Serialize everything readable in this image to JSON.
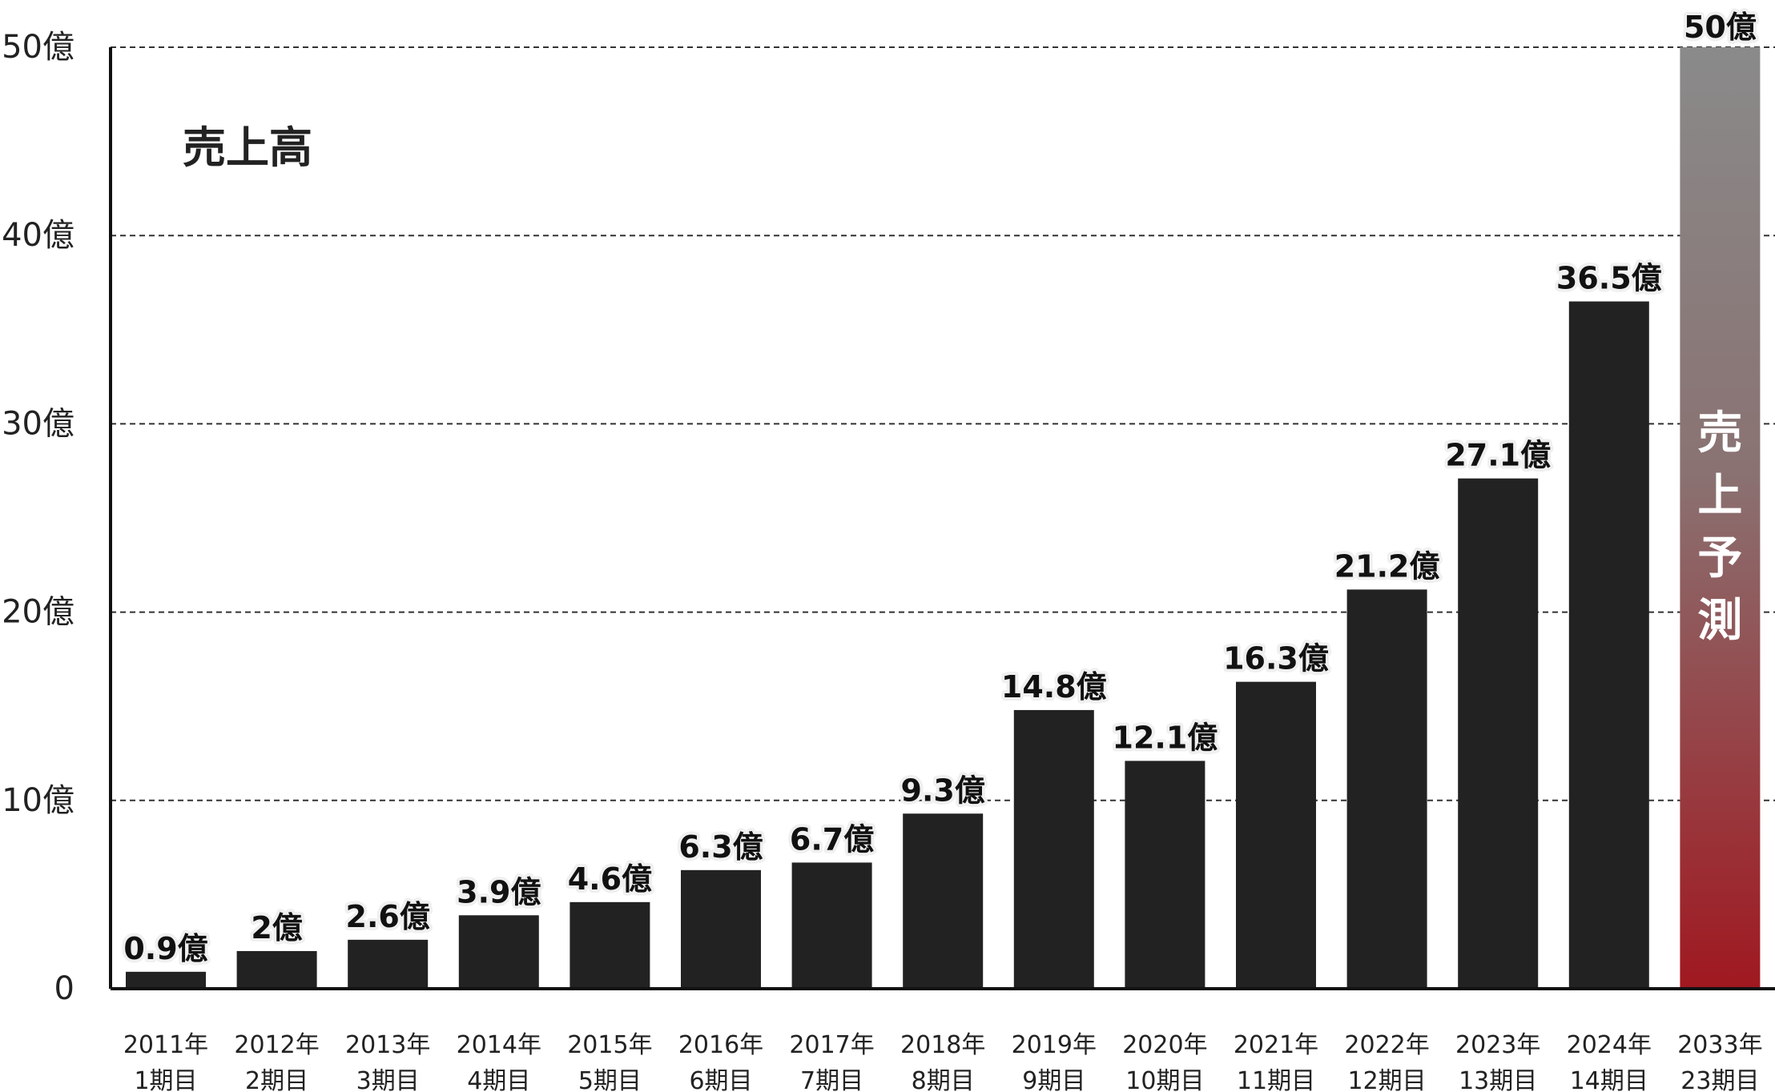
{
  "chart_data": {
    "type": "bar",
    "title": "売上高",
    "categories": [
      [
        "2011年",
        "1期目"
      ],
      [
        "2012年",
        "2期目"
      ],
      [
        "2013年",
        "3期目"
      ],
      [
        "2014年",
        "4期目"
      ],
      [
        "2015年",
        "5期目"
      ],
      [
        "2016年",
        "6期目"
      ],
      [
        "2017年",
        "7期目"
      ],
      [
        "2018年",
        "8期目"
      ],
      [
        "2019年",
        "9期目"
      ],
      [
        "2020年",
        "10期目"
      ],
      [
        "2021年",
        "11期目"
      ],
      [
        "2022年",
        "12期目"
      ],
      [
        "2023年",
        "13期目"
      ],
      [
        "2024年",
        "14期目"
      ],
      [
        "2033年",
        "23期目"
      ]
    ],
    "values": [
      0.9,
      2,
      2.6,
      3.9,
      4.6,
      6.3,
      6.7,
      9.3,
      14.8,
      12.1,
      16.3,
      21.2,
      27.1,
      36.5,
      50
    ],
    "value_labels": [
      "0.9億",
      "2億",
      "2.6億",
      "3.9億",
      "4.6億",
      "6.3億",
      "6.7億",
      "9.3億",
      "14.8億",
      "12.1億",
      "16.3億",
      "21.2億",
      "27.1億",
      "36.5億",
      "50億"
    ],
    "forecast_index": 14,
    "forecast_label": "売上予測",
    "ylim": [
      0,
      50
    ],
    "yticks": [
      0,
      10,
      20,
      30,
      40,
      50
    ],
    "ytick_labels": [
      "0",
      "10億",
      "20億",
      "30億",
      "40億",
      "50億"
    ],
    "grid": true,
    "colors": {
      "bar": "#222222",
      "forecast_top": "#8a8a8a",
      "forecast_bottom": "#a01820",
      "grid": "#333333",
      "label_halo": "#f0f0f0"
    }
  }
}
